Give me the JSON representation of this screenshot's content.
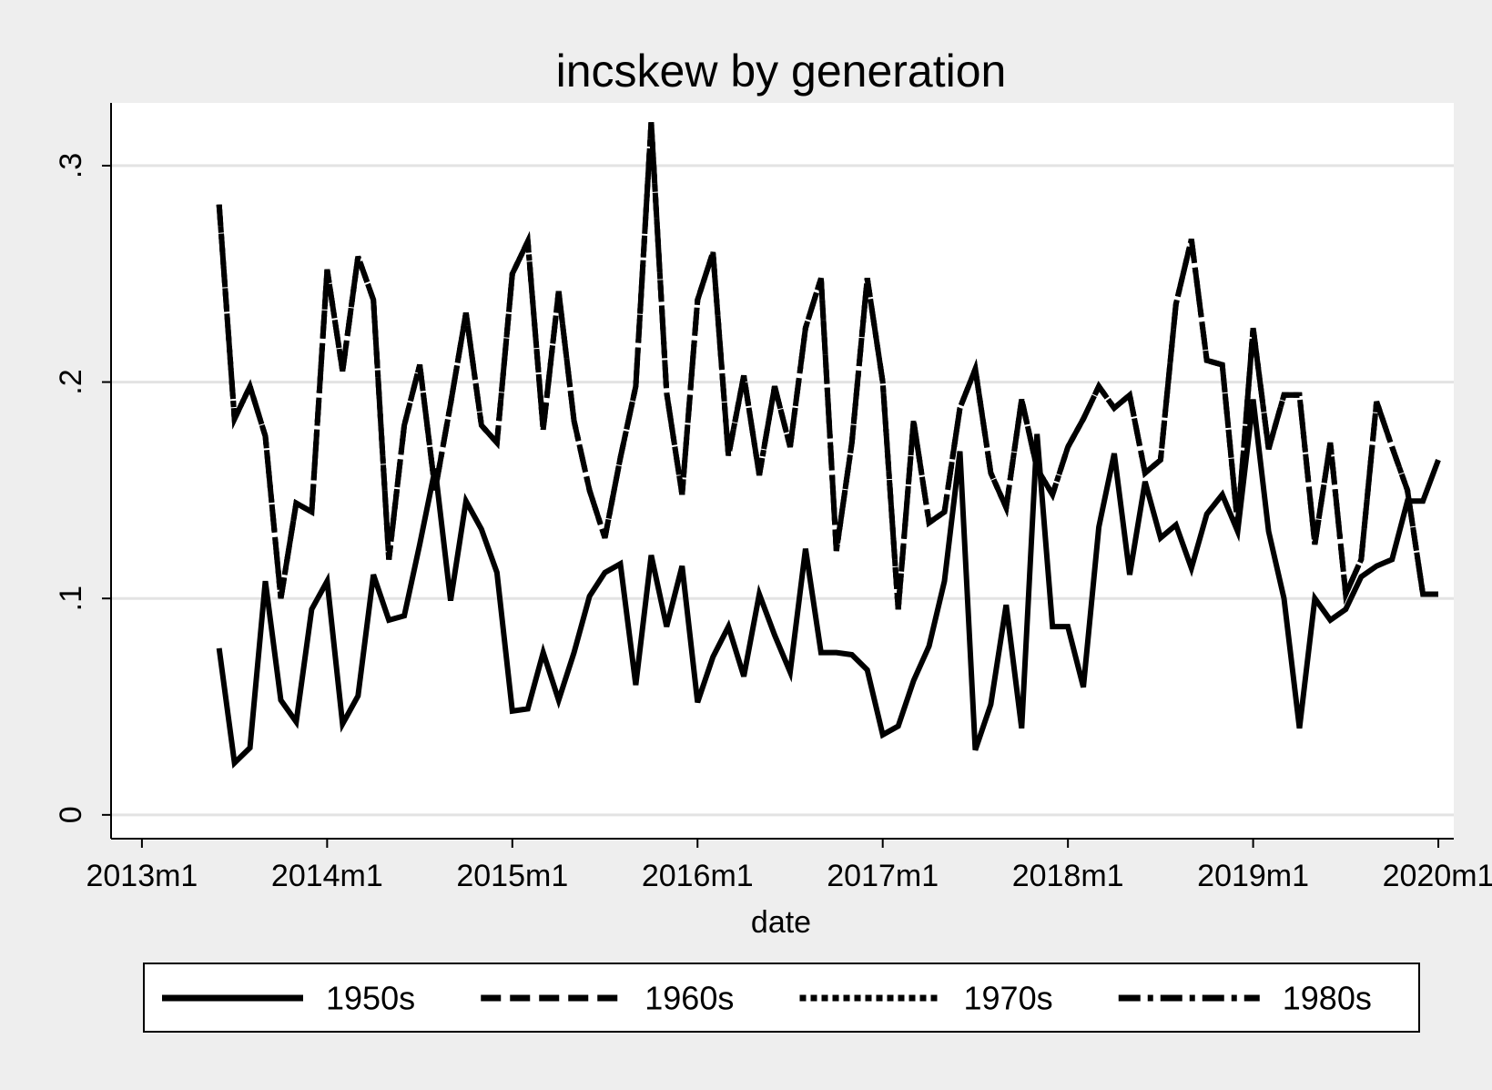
{
  "chart_data": {
    "type": "line",
    "title": "incskew by generation",
    "xlabel": "date",
    "ylabel": "",
    "x_tick_labels": [
      "2013m1",
      "2014m1",
      "2015m1",
      "2016m1",
      "2017m1",
      "2018m1",
      "2019m1",
      "2020m1"
    ],
    "x_tick_positions": [
      "2013-01",
      "2014-01",
      "2015-01",
      "2016-01",
      "2017-01",
      "2018-01",
      "2019-01",
      "2020-01"
    ],
    "y_tick_labels": [
      "0",
      ".1",
      ".2",
      ".3"
    ],
    "y_tick_values": [
      0,
      0.1,
      0.2,
      0.3
    ],
    "xlim": [
      "2012-11",
      "2020-02"
    ],
    "ylim": [
      -0.011,
      0.329
    ],
    "grid": "horizontal",
    "legend_position": "bottom",
    "legend_layout": "one row",
    "colors": {
      "line": "#000000",
      "plot_background": "#ffffff",
      "figure_background": "#eeeeee",
      "grid": "#e3e3e3"
    },
    "x_dates": [
      "2013-06",
      "2013-07",
      "2013-08",
      "2013-09",
      "2013-10",
      "2013-11",
      "2013-12",
      "2014-01",
      "2014-02",
      "2014-03",
      "2014-04",
      "2014-05",
      "2014-06",
      "2014-07",
      "2014-08",
      "2014-09",
      "2014-10",
      "2014-11",
      "2014-12",
      "2015-01",
      "2015-02",
      "2015-03",
      "2015-04",
      "2015-05",
      "2015-06",
      "2015-07",
      "2015-08",
      "2015-09",
      "2015-10",
      "2015-11",
      "2015-12",
      "2016-01",
      "2016-02",
      "2016-03",
      "2016-04",
      "2016-05",
      "2016-06",
      "2016-07",
      "2016-08",
      "2016-09",
      "2016-10",
      "2016-11",
      "2016-12",
      "2017-01",
      "2017-02",
      "2017-03",
      "2017-04",
      "2017-05",
      "2017-06",
      "2017-07",
      "2017-08",
      "2017-09",
      "2017-10",
      "2017-11",
      "2017-12",
      "2018-01",
      "2018-02",
      "2018-03",
      "2018-04",
      "2018-05",
      "2018-06",
      "2018-07",
      "2018-08",
      "2018-09",
      "2018-10",
      "2018-11",
      "2018-12",
      "2019-01",
      "2019-02",
      "2019-03",
      "2019-04",
      "2019-05",
      "2019-06",
      "2019-07",
      "2019-08",
      "2019-09",
      "2019-10",
      "2019-11",
      "2019-12",
      "2020-01"
    ],
    "series": [
      {
        "name": "1950s",
        "dash": "solid",
        "values": [
          0.077,
          0.024,
          0.031,
          0.108,
          0.053,
          0.043,
          0.095,
          0.108,
          0.042,
          0.055,
          0.111,
          0.09,
          0.092,
          0.125,
          0.16,
          0.099,
          0.145,
          0.132,
          0.112,
          0.048,
          0.049,
          0.075,
          0.053,
          0.075,
          0.101,
          0.112,
          0.116,
          0.06,
          0.12,
          0.087,
          0.115,
          0.052,
          0.073,
          0.087,
          0.064,
          0.102,
          0.083,
          0.066,
          0.123,
          0.075,
          0.075,
          0.074,
          0.067,
          0.037,
          0.041,
          0.062,
          0.078,
          0.108,
          0.168,
          0.03,
          0.051,
          0.097,
          0.04,
          0.176,
          0.087,
          0.087,
          0.059,
          0.133,
          0.167,
          0.111,
          0.154,
          0.128,
          0.134,
          0.114,
          0.139,
          0.148,
          0.131,
          0.192,
          0.131,
          0.1,
          0.04,
          0.1,
          0.09,
          0.095,
          0.11,
          0.115,
          0.118,
          0.145,
          0.145,
          0.164
        ]
      },
      {
        "name": "1960s",
        "dash": "long-dash",
        "values": [
          0.282,
          0.183,
          0.198,
          0.175,
          0.1,
          0.144,
          0.14,
          0.252,
          0.205,
          0.258,
          0.238,
          0.118,
          0.18,
          0.208,
          0.15,
          0.19,
          0.232,
          0.18,
          0.172,
          0.25,
          0.265,
          0.178,
          0.242,
          0.182,
          0.15,
          0.128,
          0.165,
          0.198,
          0.32,
          0.195,
          0.148,
          0.238,
          0.26,
          0.166,
          0.203,
          0.157,
          0.198,
          0.17,
          0.225,
          0.248,
          0.122,
          0.172,
          0.248,
          0.2,
          0.095,
          0.182,
          0.135,
          0.14,
          0.188,
          0.206,
          0.158,
          0.142,
          0.192,
          0.16,
          0.148,
          0.17,
          0.183,
          0.198,
          0.188,
          0.194,
          0.158,
          0.164,
          0.236,
          0.266,
          0.21,
          0.208,
          0.134,
          0.225,
          0.169,
          0.194,
          0.194,
          0.125,
          0.172,
          0.102,
          0.118,
          0.191,
          0.17,
          0.15,
          0.102,
          0.102
        ]
      },
      {
        "name": "1970s",
        "dash": "dot",
        "values": [
          0.282,
          0.183,
          0.198,
          0.175,
          0.1,
          0.144,
          0.14,
          0.252,
          0.205,
          0.258,
          0.238,
          0.118,
          0.18,
          0.208,
          0.15,
          0.19,
          0.232,
          0.18,
          0.172,
          0.25,
          0.265,
          0.178,
          0.242,
          0.182,
          0.15,
          0.128,
          0.165,
          0.198,
          0.32,
          0.195,
          0.148,
          0.238,
          0.26,
          0.166,
          0.203,
          0.157,
          0.198,
          0.17,
          0.225,
          0.248,
          0.122,
          0.172,
          0.248,
          0.2,
          0.095,
          0.182,
          0.135,
          0.14,
          0.188,
          0.206,
          0.158,
          0.142,
          0.192,
          0.16,
          0.148,
          0.17,
          0.183,
          0.198,
          0.188,
          0.194,
          0.158,
          0.164,
          0.236,
          0.266,
          0.21,
          0.208,
          0.134,
          0.225,
          0.169,
          0.194,
          0.194,
          0.125,
          0.172,
          0.102,
          0.118,
          0.191,
          0.17,
          0.15,
          0.102,
          0.102
        ]
      },
      {
        "name": "1980s",
        "dash": "dash-dot",
        "values": [
          0.282,
          0.183,
          0.198,
          0.175,
          0.1,
          0.144,
          0.14,
          0.252,
          0.205,
          0.258,
          0.238,
          0.118,
          0.18,
          0.208,
          0.15,
          0.19,
          0.232,
          0.18,
          0.172,
          0.25,
          0.265,
          0.178,
          0.242,
          0.182,
          0.15,
          0.128,
          0.165,
          0.198,
          0.32,
          0.195,
          0.148,
          0.238,
          0.26,
          0.166,
          0.203,
          0.157,
          0.198,
          0.17,
          0.225,
          0.248,
          0.122,
          0.172,
          0.248,
          0.2,
          0.095,
          0.182,
          0.135,
          0.14,
          0.188,
          0.206,
          0.158,
          0.142,
          0.192,
          0.16,
          0.148,
          0.17,
          0.183,
          0.198,
          0.188,
          0.194,
          0.158,
          0.164,
          0.236,
          0.266,
          0.21,
          0.208,
          0.134,
          0.225,
          0.169,
          0.194,
          0.194,
          0.125,
          0.172,
          0.102,
          0.118,
          0.191,
          0.17,
          0.15,
          0.102,
          0.102
        ]
      }
    ]
  }
}
